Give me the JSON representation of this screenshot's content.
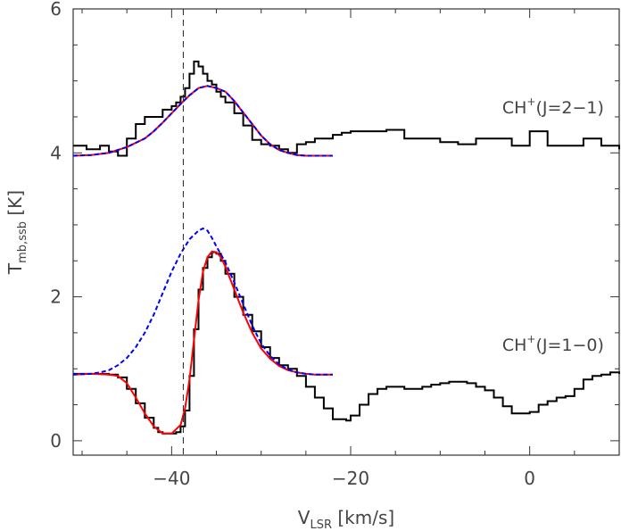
{
  "chart_data": {
    "type": "line",
    "xlabel": {
      "main": "V",
      "sub": "LSR",
      "unit": " [km/s]"
    },
    "ylabel": {
      "main": "T",
      "sub": "mb,ssb",
      "unit": " [K]"
    },
    "xlim": [
      -51,
      10
    ],
    "ylim": [
      -0.2,
      6
    ],
    "x_ticks": [
      -40,
      -20,
      0
    ],
    "x_tick_labels": [
      "−40",
      "−20",
      "0"
    ],
    "y_ticks": [
      0,
      2,
      4,
      6
    ],
    "y_tick_labels": [
      "0",
      "2",
      "4",
      "6"
    ],
    "grid": false,
    "reference_line_x": -38.7,
    "annotations": [
      {
        "base": "CH",
        "sup": "+",
        "rest": "(J=2−1)",
        "x": 8.3,
        "y": 4.55
      },
      {
        "base": "CH",
        "sup": "+",
        "rest": "(J=1−0)",
        "x": 8.3,
        "y": 1.25
      }
    ],
    "series": [
      {
        "role": "observed",
        "color": "#000000",
        "style": "step",
        "x": [
          -51,
          -49.5,
          -48,
          -47,
          -46,
          -45,
          -44,
          -43,
          -42,
          -41,
          -40,
          -39.5,
          -39,
          -38.5,
          -38,
          -37.5,
          -37,
          -36.5,
          -36,
          -35.5,
          -35,
          -34.5,
          -34,
          -33,
          -32,
          -31,
          -30,
          -29,
          -28,
          -27,
          -26,
          -25,
          -24,
          -23,
          -22,
          -21,
          -20,
          -18,
          -16,
          -14,
          -12,
          -10,
          -8,
          -6,
          -4,
          -2,
          0,
          2,
          4,
          6,
          8,
          10
        ],
        "y": [
          4.1,
          4.05,
          4.1,
          4.02,
          3.96,
          4.2,
          4.4,
          4.5,
          4.5,
          4.6,
          4.65,
          4.7,
          4.78,
          4.9,
          5.1,
          5.27,
          5.2,
          5.1,
          5.0,
          4.95,
          4.85,
          4.78,
          4.7,
          4.55,
          4.38,
          4.18,
          4.12,
          4.1,
          4.05,
          4.0,
          4.12,
          4.15,
          4.2,
          4.2,
          4.25,
          4.28,
          4.3,
          4.3,
          4.32,
          4.2,
          4.2,
          4.15,
          4.12,
          4.2,
          4.2,
          4.1,
          4.3,
          4.1,
          4.1,
          4.2,
          4.1,
          4.05
        ]
      },
      {
        "role": "fit-red",
        "color": "#ff0000",
        "style": "line",
        "x": [
          -51,
          -49,
          -47,
          -45,
          -43,
          -42,
          -41,
          -40,
          -39,
          -38,
          -37,
          -36,
          -35,
          -34,
          -33,
          -32,
          -31,
          -30,
          -29,
          -28,
          -27,
          -26,
          -25,
          -24,
          -23,
          -22
        ],
        "y": [
          3.96,
          3.97,
          4.0,
          4.08,
          4.2,
          4.3,
          4.42,
          4.55,
          4.68,
          4.8,
          4.9,
          4.93,
          4.9,
          4.85,
          4.72,
          4.56,
          4.4,
          4.24,
          4.12,
          4.04,
          4.0,
          3.97,
          3.96,
          3.96,
          3.96,
          3.96
        ]
      },
      {
        "role": "fit-blue-dashed",
        "color": "#0000ff",
        "style": "dashed",
        "x": [
          -51,
          -49,
          -47,
          -45,
          -43,
          -42,
          -41,
          -40,
          -39,
          -38,
          -37,
          -36,
          -35,
          -34,
          -33,
          -32,
          -31,
          -30,
          -29,
          -28,
          -27,
          -26,
          -25,
          -24,
          -23,
          -22
        ],
        "y": [
          3.96,
          3.97,
          4.0,
          4.08,
          4.2,
          4.3,
          4.42,
          4.55,
          4.68,
          4.8,
          4.9,
          4.93,
          4.9,
          4.85,
          4.72,
          4.56,
          4.4,
          4.24,
          4.12,
          4.04,
          4.0,
          3.97,
          3.96,
          3.96,
          3.96,
          3.96
        ]
      },
      {
        "role": "observed",
        "color": "#000000",
        "style": "step",
        "x": [
          -51,
          -49,
          -47,
          -46,
          -45,
          -44,
          -43,
          -42,
          -41.5,
          -41,
          -40.5,
          -40,
          -39.5,
          -39,
          -38.5,
          -38,
          -37.5,
          -37,
          -36.5,
          -36,
          -35.5,
          -35,
          -34.5,
          -34,
          -33,
          -32,
          -31,
          -30,
          -29,
          -28,
          -27,
          -26,
          -25,
          -24,
          -23,
          -22,
          -21,
          -20.5,
          -20,
          -19,
          -18,
          -17,
          -16,
          -15,
          -14,
          -13,
          -12,
          -11,
          -10,
          -9,
          -8,
          -7,
          -6,
          -5,
          -4,
          -3,
          -2,
          -1,
          0,
          1,
          2,
          3,
          4,
          5,
          6,
          7,
          8,
          9,
          10
        ],
        "y": [
          0.93,
          0.93,
          0.92,
          0.88,
          0.72,
          0.52,
          0.32,
          0.18,
          0.12,
          0.1,
          0.1,
          0.1,
          0.12,
          0.2,
          0.42,
          0.9,
          1.55,
          2.1,
          2.4,
          2.55,
          2.62,
          2.6,
          2.5,
          2.32,
          2.0,
          1.75,
          1.52,
          1.3,
          1.15,
          1.05,
          1.0,
          0.9,
          0.75,
          0.6,
          0.45,
          0.3,
          0.3,
          0.28,
          0.35,
          0.5,
          0.65,
          0.72,
          0.75,
          0.75,
          0.72,
          0.72,
          0.75,
          0.78,
          0.8,
          0.82,
          0.82,
          0.8,
          0.75,
          0.7,
          0.6,
          0.48,
          0.38,
          0.38,
          0.4,
          0.5,
          0.55,
          0.6,
          0.62,
          0.72,
          0.85,
          0.9,
          0.92,
          0.95,
          0.93
        ]
      },
      {
        "role": "fit-red",
        "color": "#ff0000",
        "style": "line",
        "x": [
          -51,
          -49,
          -47,
          -46,
          -45,
          -44,
          -43,
          -42,
          -41,
          -40,
          -39,
          -38.5,
          -38,
          -37.5,
          -37,
          -36.5,
          -36,
          -35.5,
          -35,
          -34.5,
          -34,
          -33,
          -32,
          -31,
          -30,
          -29,
          -28,
          -27,
          -26,
          -25,
          -24,
          -23,
          -22
        ],
        "y": [
          0.92,
          0.93,
          0.92,
          0.9,
          0.8,
          0.6,
          0.38,
          0.2,
          0.1,
          0.1,
          0.22,
          0.45,
          0.85,
          1.4,
          1.95,
          2.35,
          2.55,
          2.63,
          2.62,
          2.55,
          2.42,
          2.1,
          1.78,
          1.5,
          1.28,
          1.14,
          1.04,
          0.98,
          0.95,
          0.93,
          0.92,
          0.92,
          0.92
        ]
      },
      {
        "role": "fit-blue-dashed",
        "color": "#0000ff",
        "style": "dashed",
        "x": [
          -51,
          -49,
          -48,
          -47,
          -46,
          -45,
          -44,
          -43,
          -42,
          -41,
          -40,
          -39,
          -38,
          -37,
          -36.5,
          -36,
          -35.5,
          -35,
          -34,
          -33,
          -32,
          -31,
          -30,
          -29,
          -28,
          -27,
          -26,
          -25,
          -24,
          -23,
          -22
        ],
        "y": [
          0.92,
          0.93,
          0.95,
          0.98,
          1.05,
          1.15,
          1.3,
          1.5,
          1.75,
          2.05,
          2.35,
          2.6,
          2.8,
          2.92,
          2.95,
          2.92,
          2.82,
          2.7,
          2.48,
          2.2,
          1.9,
          1.6,
          1.35,
          1.18,
          1.06,
          0.99,
          0.95,
          0.93,
          0.92,
          0.92,
          0.92
        ]
      }
    ]
  }
}
